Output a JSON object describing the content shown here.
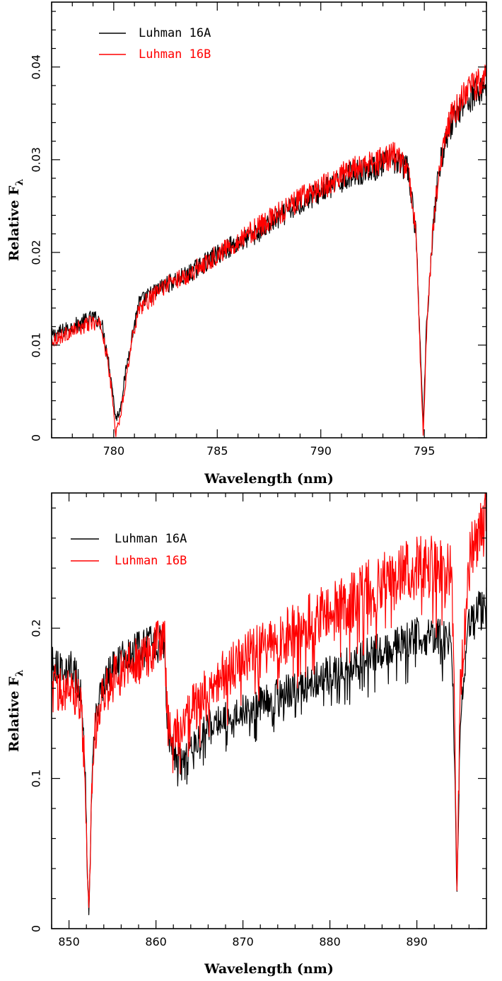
{
  "chart_data": [
    {
      "type": "line",
      "xlabel": "Wavelength (nm)",
      "ylabel": "Relative F",
      "ylabel_subscript": "λ",
      "xlim": [
        777,
        798
      ],
      "ylim": [
        0,
        0.047
      ],
      "xticks": [
        {
          "value": 780,
          "label": "780"
        },
        {
          "value": 785,
          "label": "785"
        },
        {
          "value": 790,
          "label": "790"
        },
        {
          "value": 795,
          "label": "795"
        }
      ],
      "yticks": [
        {
          "value": 0,
          "label": "0"
        },
        {
          "value": 0.01,
          "label": "0.01"
        },
        {
          "value": 0.02,
          "label": "0.02"
        },
        {
          "value": 0.03,
          "label": "0.03"
        },
        {
          "value": 0.04,
          "label": "0.04"
        }
      ],
      "legend_position": "top-left",
      "series": [
        {
          "name": "Luhman 16A",
          "color": "#000000",
          "x": [
            777,
            777.5,
            778,
            778.5,
            779,
            779.4,
            779.7,
            779.9,
            780.1,
            780.3,
            780.5,
            780.8,
            781.2,
            781.8,
            782.5,
            783.5,
            784.5,
            785.5,
            786.5,
            787.5,
            788.5,
            789.5,
            790.5,
            791.5,
            792.5,
            793.5,
            794.2,
            794.6,
            794.8,
            794.95,
            795.1,
            795.4,
            795.7,
            796.2,
            796.8,
            797.4,
            798
          ],
          "y": [
            0.011,
            0.0115,
            0.012,
            0.0125,
            0.013,
            0.0125,
            0.009,
            0.006,
            0.002,
            0.003,
            0.006,
            0.01,
            0.0145,
            0.0155,
            0.0165,
            0.0175,
            0.019,
            0.0205,
            0.0215,
            0.023,
            0.0245,
            0.026,
            0.027,
            0.0285,
            0.029,
            0.03,
            0.029,
            0.022,
            0.01,
            0.001,
            0.012,
            0.022,
            0.029,
            0.0335,
            0.036,
            0.037,
            0.038
          ]
        },
        {
          "name": "Luhman 16B",
          "color": "#ff0000",
          "x": [
            777,
            777.5,
            778,
            778.5,
            779,
            779.4,
            779.7,
            779.9,
            780.1,
            780.3,
            780.5,
            780.8,
            781.2,
            781.8,
            782.5,
            783.5,
            784.5,
            785.5,
            786.5,
            787.5,
            788.5,
            789.5,
            790.5,
            791.5,
            792.5,
            793.5,
            794.2,
            794.6,
            794.8,
            794.95,
            795.1,
            795.4,
            795.7,
            796.2,
            796.8,
            797.4,
            798
          ],
          "y": [
            0.0105,
            0.011,
            0.0115,
            0.012,
            0.0125,
            0.012,
            0.0085,
            0.005,
            0.0005,
            0.002,
            0.005,
            0.0095,
            0.014,
            0.015,
            0.0165,
            0.0175,
            0.019,
            0.0205,
            0.022,
            0.0235,
            0.025,
            0.0265,
            0.0275,
            0.029,
            0.0295,
            0.0305,
            0.029,
            0.022,
            0.009,
            0.0,
            0.011,
            0.022,
            0.029,
            0.034,
            0.0365,
            0.038,
            0.039
          ]
        }
      ]
    },
    {
      "type": "line",
      "xlabel": "Wavelength (nm)",
      "ylabel": "Relative F",
      "ylabel_subscript": "λ",
      "xlim": [
        848,
        898
      ],
      "ylim": [
        0,
        0.29
      ],
      "xticks": [
        {
          "value": 850,
          "label": "850"
        },
        {
          "value": 860,
          "label": "860"
        },
        {
          "value": 870,
          "label": "870"
        },
        {
          "value": 880,
          "label": "880"
        },
        {
          "value": 890,
          "label": "890"
        }
      ],
      "yticks": [
        {
          "value": 0,
          "label": "0"
        },
        {
          "value": 0.1,
          "label": "0.1"
        },
        {
          "value": 0.2,
          "label": "0.2"
        }
      ],
      "legend_position": "top-left",
      "series": [
        {
          "name": "Luhman 16A",
          "color": "#000000",
          "x": [
            848,
            849.5,
            850.5,
            851.3,
            851.8,
            852.1,
            852.3,
            852.6,
            853,
            853.6,
            854.5,
            856,
            858,
            860,
            861,
            861.3,
            862,
            863,
            864,
            866,
            868,
            870,
            872,
            874,
            876,
            878,
            880,
            882,
            884,
            886,
            888,
            890,
            892,
            894,
            894.4,
            894.6,
            895,
            896,
            897,
            898
          ],
          "y": [
            0.175,
            0.175,
            0.172,
            0.16,
            0.12,
            0.04,
            0.01,
            0.09,
            0.14,
            0.158,
            0.17,
            0.18,
            0.185,
            0.19,
            0.19,
            0.13,
            0.12,
            0.11,
            0.12,
            0.135,
            0.14,
            0.145,
            0.15,
            0.155,
            0.16,
            0.165,
            0.17,
            0.175,
            0.18,
            0.185,
            0.19,
            0.195,
            0.195,
            0.19,
            0.1,
            0.02,
            0.14,
            0.2,
            0.21,
            0.215
          ]
        },
        {
          "name": "Luhman 16B",
          "color": "#ff0000",
          "x": [
            848,
            849.5,
            850.5,
            851.3,
            851.8,
            852.1,
            852.3,
            852.6,
            853,
            853.6,
            854.5,
            856,
            858,
            860,
            861,
            861.3,
            862,
            863,
            864,
            866,
            868,
            870,
            872,
            874,
            876,
            878,
            880,
            882,
            884,
            886,
            888,
            890,
            892,
            894,
            894.4,
            894.6,
            895,
            896,
            897,
            898
          ],
          "y": [
            0.16,
            0.16,
            0.16,
            0.152,
            0.11,
            0.04,
            0.01,
            0.085,
            0.13,
            0.148,
            0.162,
            0.172,
            0.18,
            0.188,
            0.19,
            0.14,
            0.135,
            0.135,
            0.145,
            0.16,
            0.17,
            0.18,
            0.185,
            0.19,
            0.2,
            0.205,
            0.21,
            0.215,
            0.225,
            0.23,
            0.235,
            0.24,
            0.24,
            0.235,
            0.12,
            0.02,
            0.16,
            0.245,
            0.26,
            0.275
          ]
        }
      ]
    }
  ]
}
